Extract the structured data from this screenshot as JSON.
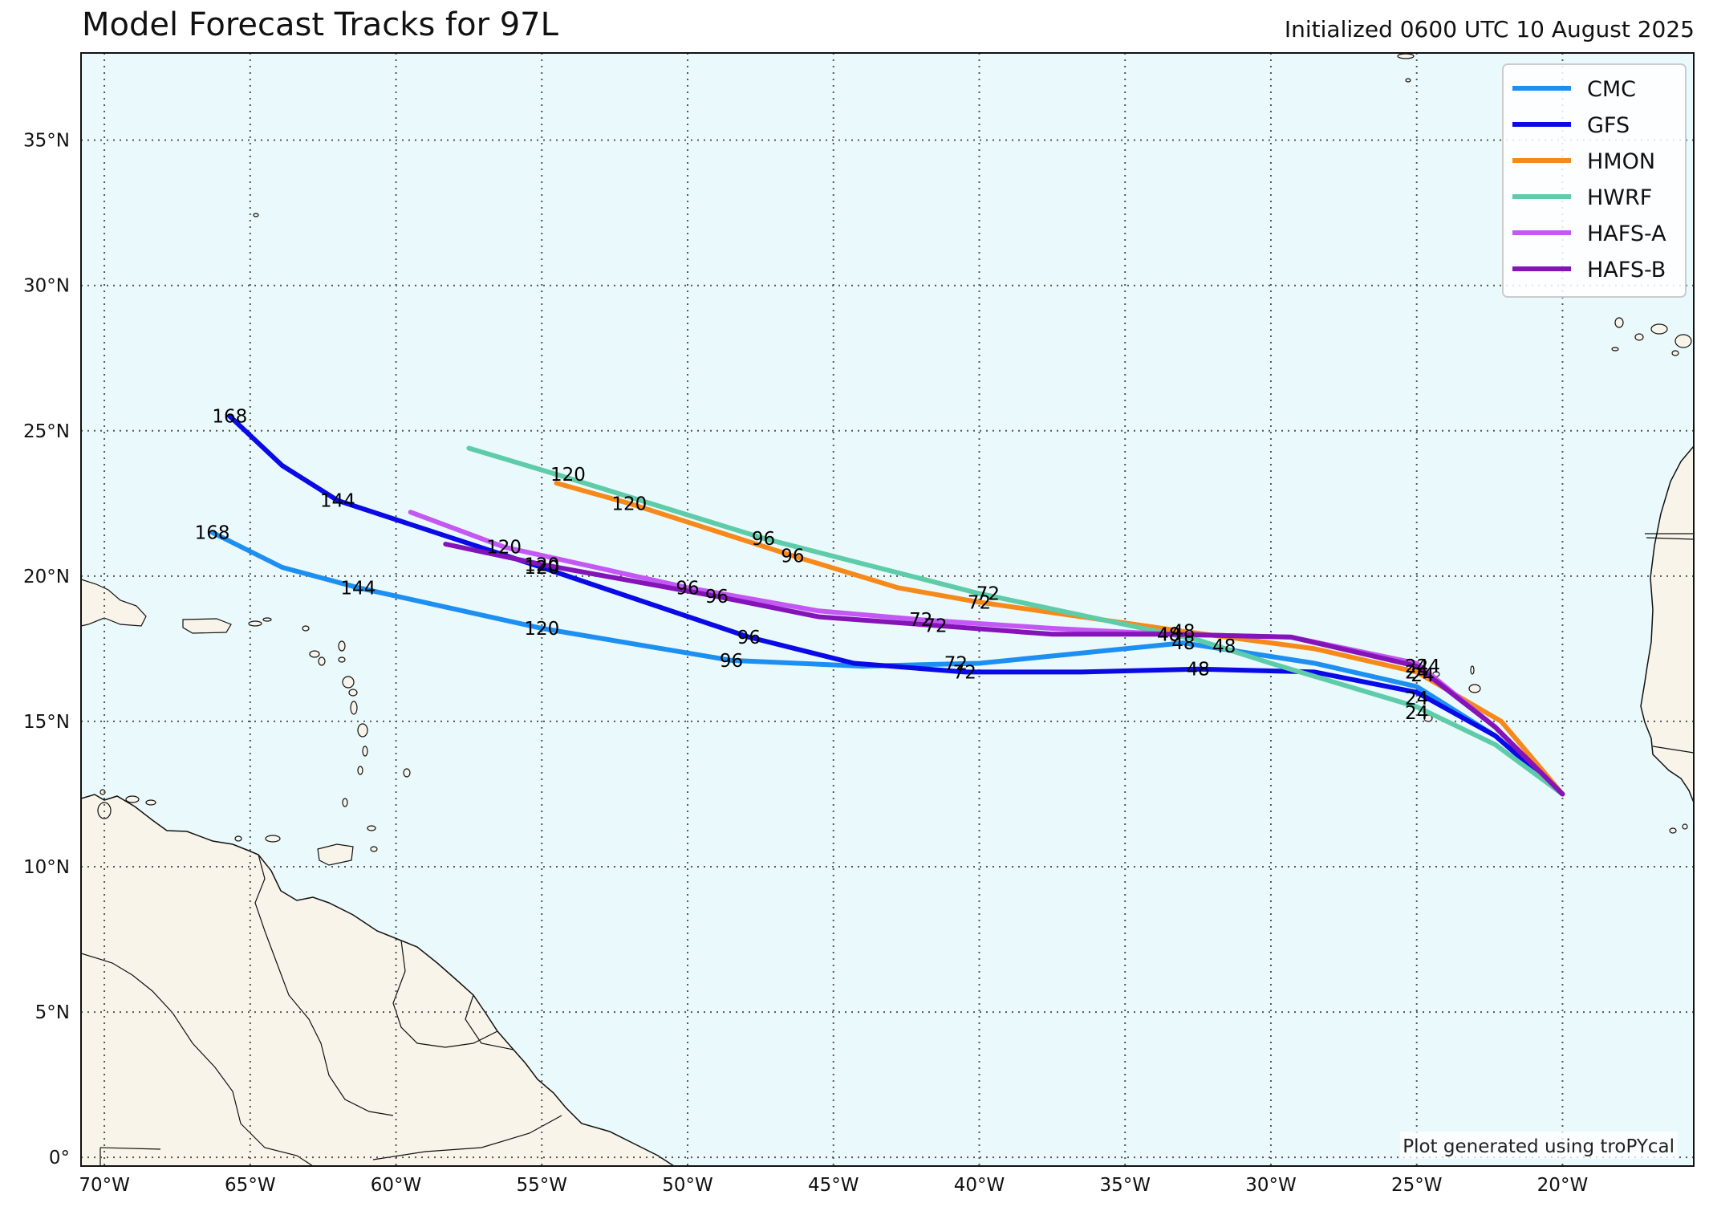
{
  "chart_data": {
    "type": "line",
    "title": "Model Forecast Tracks for 97L",
    "subtitle": "Initialized 0600 UTC 10 August 2025",
    "credit": "Plot generated using troPYcal",
    "xlim": [
      -70.8,
      -15.5
    ],
    "ylim": [
      -0.3,
      38
    ],
    "x_ticks": [
      {
        "value": -70,
        "label": "70°W"
      },
      {
        "value": -65,
        "label": "65°W"
      },
      {
        "value": -60,
        "label": "60°W"
      },
      {
        "value": -55,
        "label": "55°W"
      },
      {
        "value": -50,
        "label": "50°W"
      },
      {
        "value": -45,
        "label": "45°W"
      },
      {
        "value": -40,
        "label": "40°W"
      },
      {
        "value": -35,
        "label": "35°W"
      },
      {
        "value": -30,
        "label": "30°W"
      },
      {
        "value": -25,
        "label": "25°W"
      },
      {
        "value": -20,
        "label": "20°W"
      }
    ],
    "y_ticks": [
      {
        "value": 0,
        "label": "0°"
      },
      {
        "value": 5,
        "label": "5°N"
      },
      {
        "value": 10,
        "label": "10°N"
      },
      {
        "value": 15,
        "label": "15°N"
      },
      {
        "value": 20,
        "label": "20°N"
      },
      {
        "value": 25,
        "label": "25°N"
      },
      {
        "value": 30,
        "label": "30°N"
      },
      {
        "value": 35,
        "label": "35°N"
      }
    ],
    "grid": true,
    "legend_position": "top-right",
    "colors": {
      "ocean": "#eaf9fb",
      "land": "#f9f4ea",
      "coast": "#111111",
      "grid": "#555555"
    },
    "series": [
      {
        "name": "CMC",
        "color": "#1e8ff2",
        "points": [
          [
            -20.0,
            12.5
          ],
          [
            -22.3,
            14.5
          ],
          [
            -25.0,
            16.2
          ],
          [
            -28.5,
            17.0
          ],
          [
            -33.0,
            17.7
          ],
          [
            -40.0,
            17.0
          ],
          [
            -44.0,
            16.9
          ],
          [
            -48.5,
            17.1
          ],
          [
            -55.0,
            18.2
          ],
          [
            -61.3,
            19.6
          ],
          [
            -63.9,
            20.3
          ],
          [
            -66.3,
            21.5
          ]
        ],
        "labels": [
          {
            "text": "24",
            "x": -25.0,
            "y": 15.3
          },
          {
            "text": "48",
            "x": -33.0,
            "y": 17.7
          },
          {
            "text": "72",
            "x": -40.8,
            "y": 17.0
          },
          {
            "text": "96",
            "x": -48.5,
            "y": 17.1
          },
          {
            "text": "120",
            "x": -55.0,
            "y": 18.2
          },
          {
            "text": "144",
            "x": -61.3,
            "y": 19.6
          },
          {
            "text": "168",
            "x": -66.3,
            "y": 21.5
          }
        ]
      },
      {
        "name": "GFS",
        "color": "#0a0ae6",
        "points": [
          [
            -20.0,
            12.5
          ],
          [
            -22.3,
            14.5
          ],
          [
            -25.0,
            16.0
          ],
          [
            -28.5,
            16.7
          ],
          [
            -32.5,
            16.8
          ],
          [
            -36.5,
            16.7
          ],
          [
            -40.5,
            16.7
          ],
          [
            -44.3,
            17.0
          ],
          [
            -47.9,
            17.9
          ],
          [
            -55.0,
            20.3
          ],
          [
            -62.0,
            22.6
          ],
          [
            -63.9,
            23.8
          ],
          [
            -65.7,
            25.5
          ]
        ],
        "labels": [
          {
            "text": "24",
            "x": -25.0,
            "y": 15.8
          },
          {
            "text": "48",
            "x": -32.5,
            "y": 16.8
          },
          {
            "text": "72",
            "x": -40.5,
            "y": 16.7
          },
          {
            "text": "96",
            "x": -47.9,
            "y": 17.9
          },
          {
            "text": "120",
            "x": -55.0,
            "y": 20.3
          },
          {
            "text": "144",
            "x": -62.0,
            "y": 22.6
          },
          {
            "text": "168",
            "x": -65.7,
            "y": 25.5
          }
        ]
      },
      {
        "name": "HMON",
        "color": "#f7891b",
        "points": [
          [
            -20.0,
            12.5
          ],
          [
            -22.1,
            15.0
          ],
          [
            -25.0,
            16.7
          ],
          [
            -28.5,
            17.5
          ],
          [
            -33.0,
            18.1
          ],
          [
            -40.0,
            19.1
          ],
          [
            -42.8,
            19.6
          ],
          [
            -46.4,
            20.7
          ],
          [
            -52.0,
            22.5
          ],
          [
            -54.5,
            23.2
          ]
        ],
        "labels": [
          {
            "text": "24",
            "x": -25.0,
            "y": 16.7
          },
          {
            "text": "48",
            "x": -33.0,
            "y": 18.1
          },
          {
            "text": "72",
            "x": -40.0,
            "y": 19.1
          },
          {
            "text": "96",
            "x": -46.4,
            "y": 20.7
          },
          {
            "text": "120",
            "x": -52.0,
            "y": 22.5
          }
        ]
      },
      {
        "name": "HWRF",
        "color": "#5ecca8",
        "points": [
          [
            -20.0,
            12.5
          ],
          [
            -22.3,
            14.2
          ],
          [
            -25.0,
            15.5
          ],
          [
            -30.0,
            17.0
          ],
          [
            -32.5,
            17.8
          ],
          [
            -40.0,
            19.4
          ],
          [
            -47.4,
            21.3
          ],
          [
            -54.5,
            23.5
          ],
          [
            -57.5,
            24.4
          ]
        ],
        "labels": [
          {
            "text": "24",
            "x": -25.0,
            "y": 16.9
          },
          {
            "text": "48",
            "x": -31.6,
            "y": 17.6
          },
          {
            "text": "72",
            "x": -39.7,
            "y": 19.4
          },
          {
            "text": "96",
            "x": -47.4,
            "y": 21.3
          },
          {
            "text": "120",
            "x": -54.1,
            "y": 23.5
          }
        ]
      },
      {
        "name": "HAFS-A",
        "color": "#c358f5",
        "points": [
          [
            -20.0,
            12.5
          ],
          [
            -22.3,
            14.8
          ],
          [
            -25.0,
            17.0
          ],
          [
            -29.3,
            17.9
          ],
          [
            -33.5,
            18.0
          ],
          [
            -37.5,
            18.2
          ],
          [
            -42.0,
            18.5
          ],
          [
            -45.5,
            18.8
          ],
          [
            -50.0,
            19.6
          ],
          [
            -56.3,
            21.0
          ],
          [
            -59.5,
            22.2
          ]
        ],
        "labels": [
          {
            "text": "24",
            "x": -24.6,
            "y": 16.9
          },
          {
            "text": "48",
            "x": -33.5,
            "y": 18.0
          },
          {
            "text": "72",
            "x": -42.0,
            "y": 18.5
          },
          {
            "text": "96",
            "x": -50.0,
            "y": 19.6
          },
          {
            "text": "120",
            "x": -56.3,
            "y": 21.0
          }
        ]
      },
      {
        "name": "HAFS-B",
        "color": "#8414b8",
        "points": [
          [
            -20.0,
            12.5
          ],
          [
            -22.3,
            14.8
          ],
          [
            -25.0,
            16.9
          ],
          [
            -29.3,
            17.9
          ],
          [
            -33.5,
            18.0
          ],
          [
            -37.5,
            18.0
          ],
          [
            -41.5,
            18.3
          ],
          [
            -45.5,
            18.6
          ],
          [
            -49.0,
            19.3
          ],
          [
            -55.0,
            20.4
          ],
          [
            -58.3,
            21.1
          ]
        ],
        "labels": [
          {
            "text": "24",
            "x": -24.8,
            "y": 16.6
          },
          {
            "text": "48",
            "x": -33.5,
            "y": 18.0
          },
          {
            "text": "72",
            "x": -41.5,
            "y": 18.3
          },
          {
            "text": "96",
            "x": -49.0,
            "y": 19.3
          },
          {
            "text": "120",
            "x": -55.0,
            "y": 20.4
          }
        ]
      }
    ]
  }
}
